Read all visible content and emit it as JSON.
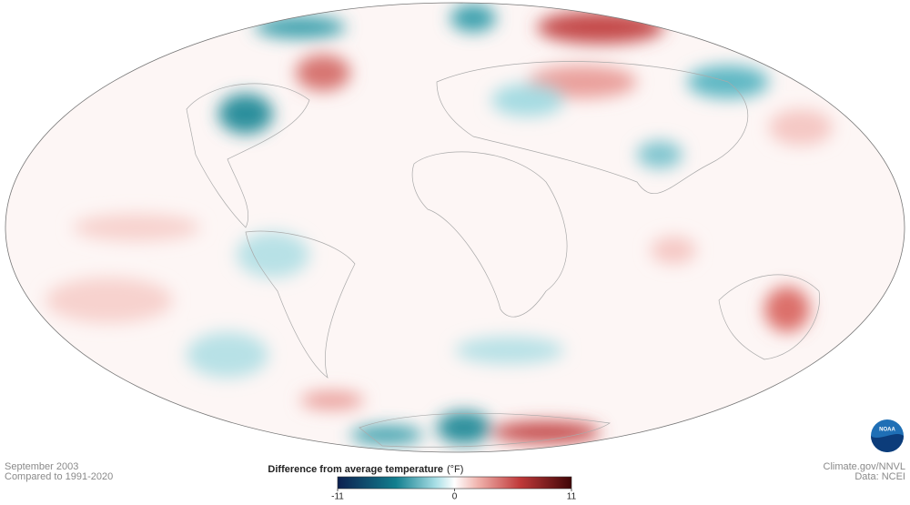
{
  "header": {
    "period": "September 2003",
    "baseline": "Compared to 1991-2020"
  },
  "legend": {
    "title": "Difference from average temperature",
    "unit": "(°F)",
    "ticks": [
      -11,
      0,
      11
    ]
  },
  "credits": {
    "source": "Climate.gov/NNVL",
    "data": "Data: NCEI",
    "logo": "NOAA"
  }
}
